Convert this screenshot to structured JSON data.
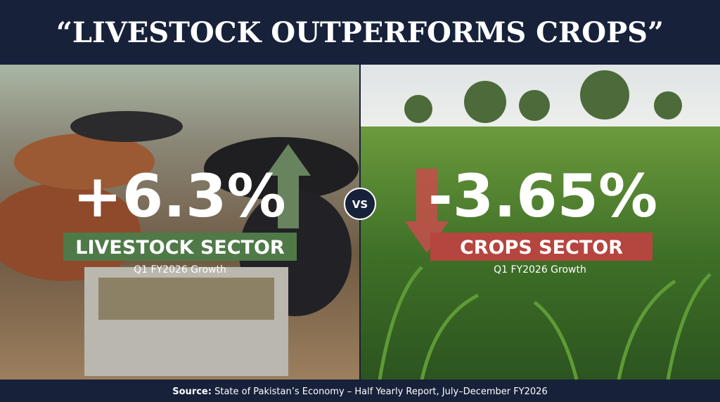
{
  "header": {
    "title": "“LIVESTOCK OUTPERFORMS CROPS”"
  },
  "left": {
    "value": "+6.3%",
    "label": "LIVESTOCK SECTOR",
    "caption": "Q1 FY2026 Growth"
  },
  "divider": "VS",
  "right": {
    "value": "-3.65%",
    "label": "CROPS SECTOR",
    "caption": "Q1 FY2026 Growth"
  },
  "footer": {
    "source_label": "Source:",
    "source_text": "State of Pakistan’s Economy – Half Yearly Report, July–December FY2026"
  }
}
